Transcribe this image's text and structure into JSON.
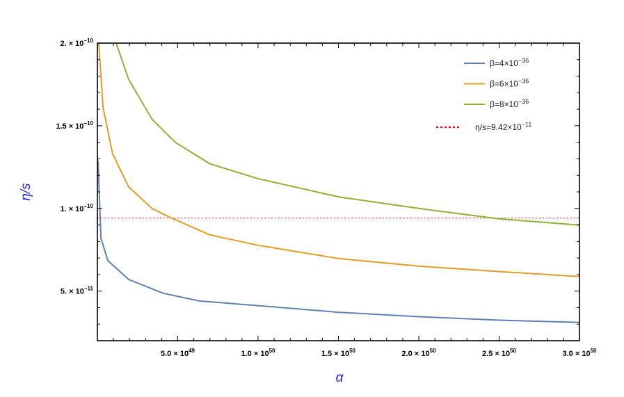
{
  "chart_data": {
    "type": "line",
    "xlabel": "α",
    "ylabel": "η/s",
    "xlim": [
      0,
      3e+50
    ],
    "ylim": [
      2e-11,
      2e-10
    ],
    "grid": false,
    "legend_position": "top-right",
    "x_ticks": [
      {
        "value": 5e+49,
        "mantissa": "5.0 × 10",
        "exponent": "49"
      },
      {
        "value": 1e+50,
        "mantissa": "1.0 × 10",
        "exponent": "50"
      },
      {
        "value": 1.5e+50,
        "mantissa": "1.5 × 10",
        "exponent": "50"
      },
      {
        "value": 2e+50,
        "mantissa": "2.0 × 10",
        "exponent": "50"
      },
      {
        "value": 2.5e+50,
        "mantissa": "2.5 × 10",
        "exponent": "50"
      },
      {
        "value": 3e+50,
        "mantissa": "3.0 × 10",
        "exponent": "50"
      }
    ],
    "y_ticks": [
      {
        "value": 5e-11,
        "mantissa": "5. × 10",
        "exponent": "−11"
      },
      {
        "value": 1e-10,
        "mantissa": "1. × 10",
        "exponent": "−10"
      },
      {
        "value": 1.5e-10,
        "mantissa": "1.5 × 10",
        "exponent": "−10"
      },
      {
        "value": 2e-10,
        "mantissa": "2. × 10",
        "exponent": "−10"
      }
    ],
    "series": [
      {
        "name": "β=4×10",
        "name_exponent": "−36",
        "color": "#5e81b5",
        "x": [
          4.3e+47,
          2.2e+48,
          6.5e+48,
          1.95e+49,
          4.1e+49,
          6.3e+49,
          1e+50,
          1.5e+50,
          2e+50,
          2.5e+50,
          3e+50
        ],
        "y": [
          1.29e-10,
          8.2e-11,
          6.85e-11,
          5.7e-11,
          4.87e-11,
          4.41e-11,
          4.12e-11,
          3.72e-11,
          3.45e-11,
          3.24e-11,
          3.1e-11
        ]
      },
      {
        "name": "β=6×10",
        "name_exponent": "−36",
        "color": "#e19c24",
        "x": [
          8.7e+47,
          3.5e+48,
          9.5e+48,
          1.95e+49,
          3.4e+49,
          4.55e+49,
          7e+49,
          1e+50,
          1.5e+50,
          2e+50,
          2.5e+50,
          3e+50
        ],
        "y": [
          2e-10,
          1.61e-10,
          1.33e-10,
          1.13e-10,
          1e-10,
          9.45e-11,
          8.4e-11,
          7.77e-11,
          6.97e-11,
          6.51e-11,
          6.18e-11,
          5.88e-11
        ]
      },
      {
        "name": "β=8×10",
        "name_exponent": "−36",
        "color": "#8fb032",
        "x": [
          1.17e+49,
          1.95e+49,
          3.4e+49,
          4.85e+49,
          7e+49,
          1e+50,
          1.5e+50,
          2e+50,
          2.5e+50,
          3e+50
        ],
        "y": [
          2e-10,
          1.78e-10,
          1.54e-10,
          1.4e-10,
          1.27e-10,
          1.18e-10,
          1.07e-10,
          1e-10,
          9.37e-11,
          8.99e-11
        ]
      }
    ],
    "reference_line": {
      "name": "η/s=9.42×10",
      "name_exponent": "−11",
      "y": 9.42e-11,
      "color": "#ff0000",
      "style": "dashed"
    }
  }
}
